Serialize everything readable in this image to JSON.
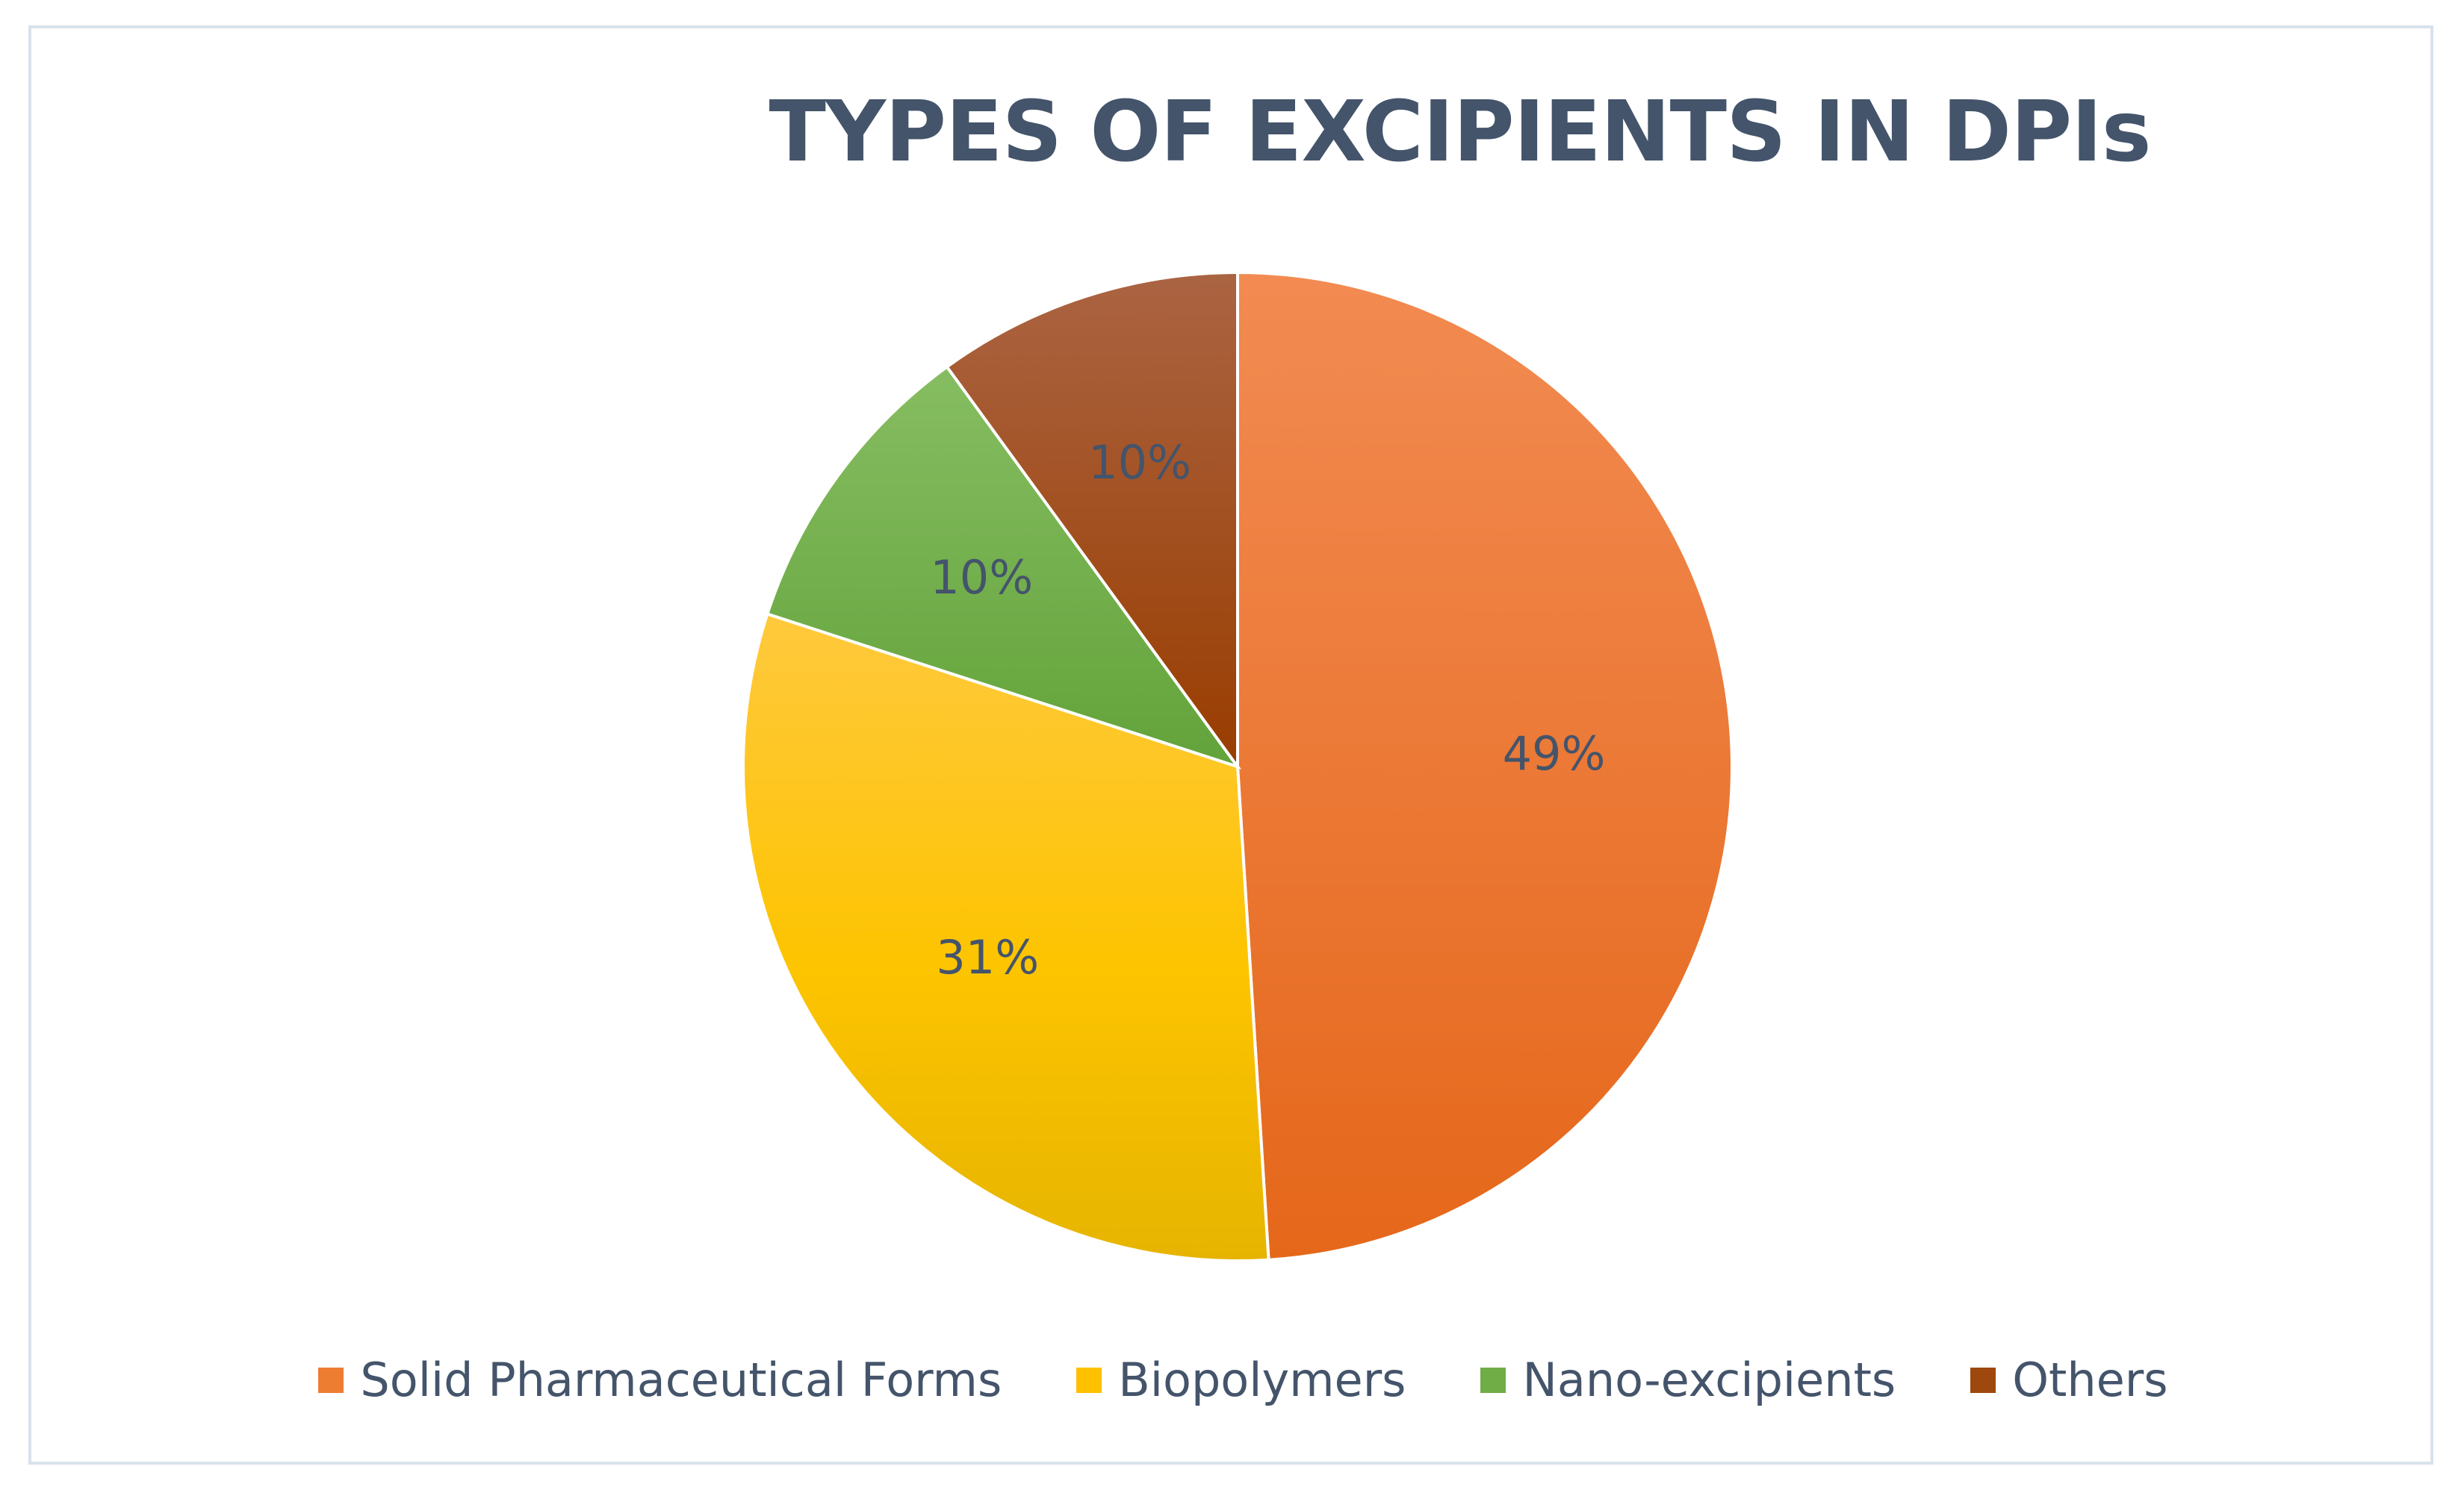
{
  "chart_data": {
    "type": "pie",
    "title": "TYPES OF EXCIPIENTS IN DPIs",
    "categories": [
      "Solid Pharmaceutical Forms",
      "Biopolymers",
      "Nano-excipients",
      "Others"
    ],
    "values": [
      49,
      31,
      10,
      10
    ],
    "data_labels": [
      "49%",
      "31%",
      "10%",
      "10%"
    ],
    "colors": [
      "#ed7d31",
      "#ffc000",
      "#70ad47",
      "#9e480e"
    ],
    "legend_position": "bottom",
    "start_angle": "12 o'clock",
    "direction": "clockwise"
  }
}
